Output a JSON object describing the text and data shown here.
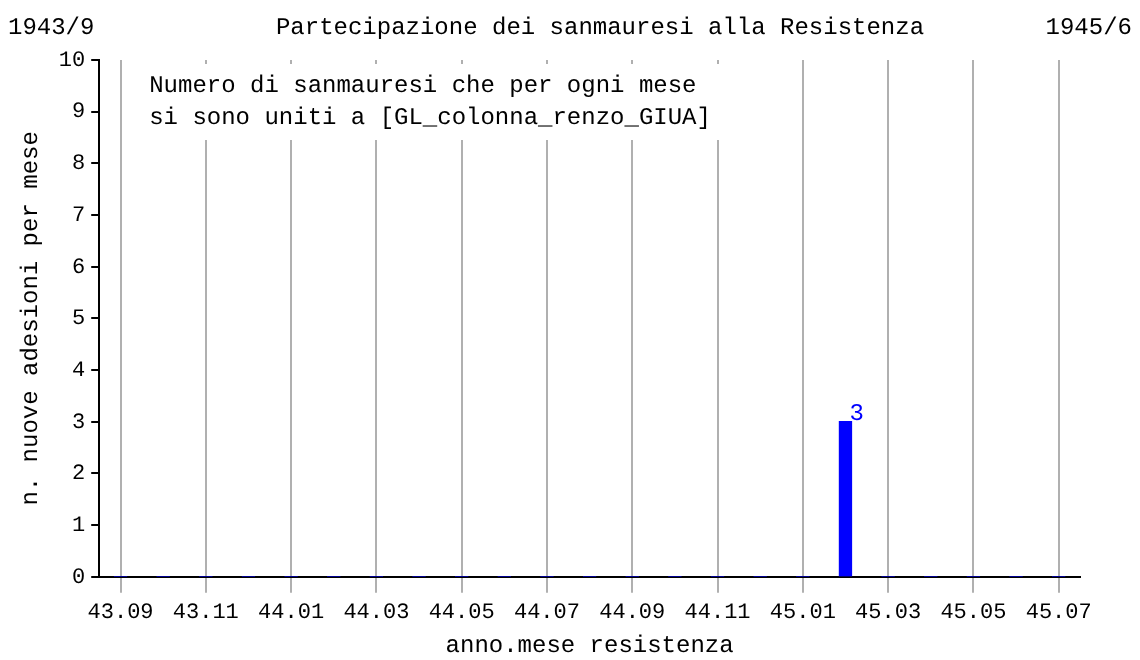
{
  "chart_data": {
    "type": "bar",
    "title": "Partecipazione dei sanmauresi alla Resistenza",
    "annotations": [
      "1943/9",
      "1945/6",
      "Numero di sanmauresi che per ogni mese\nsi sono uniti a [GL_colonna_renzo_GIUA]"
    ],
    "xlabel": "anno.mese resistenza",
    "ylabel": "n. nuove adesioni per mese",
    "categories": [
      "43.09",
      null,
      "43.11",
      null,
      "44.01",
      null,
      "44.03",
      null,
      "44.05",
      null,
      "44.07",
      null,
      "44.09",
      null,
      "44.11",
      null,
      "45.01",
      null,
      "45.03",
      null,
      "45.05",
      null,
      "45.07"
    ],
    "values": [
      0,
      0,
      0,
      0,
      0,
      0,
      0,
      0,
      0,
      0,
      0,
      0,
      0,
      0,
      0,
      0,
      0,
      3,
      0,
      0,
      0,
      0,
      0
    ],
    "value_labels": [
      null,
      null,
      null,
      null,
      null,
      null,
      null,
      null,
      null,
      null,
      null,
      null,
      null,
      null,
      null,
      null,
      null,
      "3",
      null,
      null,
      null,
      null,
      null
    ],
    "color": "#0000ff",
    "ylim": [
      0,
      10
    ],
    "yticks": [
      0,
      1,
      2,
      3,
      4,
      5,
      6,
      7,
      8,
      9,
      10
    ],
    "grid": "x"
  }
}
